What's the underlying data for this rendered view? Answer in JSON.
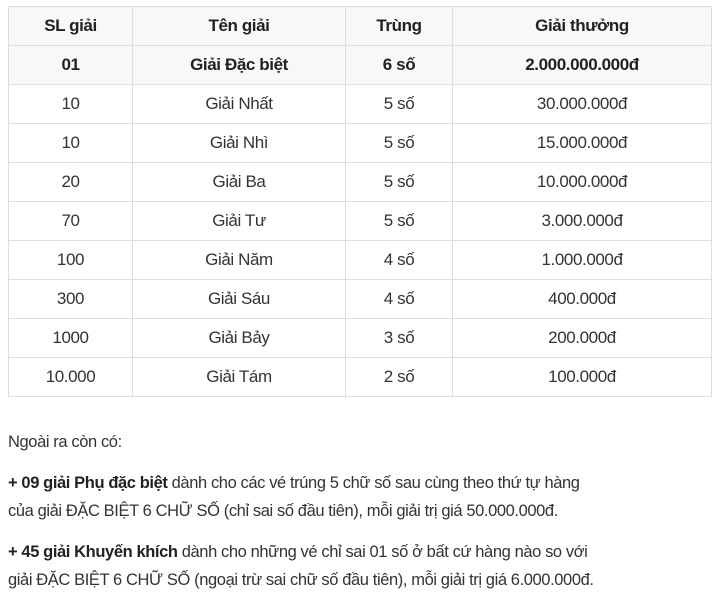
{
  "table": {
    "headers": [
      "SL giải",
      "Tên giải",
      "Trùng",
      "Giải thưởng"
    ],
    "rows": [
      [
        "01",
        "Giải Đặc biệt",
        "6 số",
        "2.000.000.000đ"
      ],
      [
        "10",
        "Giải Nhất",
        "5 số",
        "30.000.000đ"
      ],
      [
        "10",
        "Giải Nhì",
        "5 số",
        "15.000.000đ"
      ],
      [
        "20",
        "Giải Ba",
        "5 số",
        "10.000.000đ"
      ],
      [
        "70",
        "Giải Tư",
        "5 số",
        "3.000.000đ"
      ],
      [
        "100",
        "Giải Năm",
        "4 số",
        "1.000.000đ"
      ],
      [
        "300",
        "Giải Sáu",
        "4 số",
        "400.000đ"
      ],
      [
        "1000",
        "Giải Bảy",
        "3 số",
        "200.000đ"
      ],
      [
        "10.000",
        "Giải Tám",
        "2 số",
        "100.000đ"
      ]
    ]
  },
  "notes": {
    "intro": "Ngoài ra còn có:",
    "items": [
      {
        "bold": "+ 09 giải Phụ đặc biệt",
        "line1": " dành cho các vé trúng 5 chữ số sau cùng theo thứ tự hàng",
        "line2": "của giải ĐẶC BIỆT 6 CHỮ SỐ (chỉ sai số đầu tiên), mỗi giải trị giá 50.000.000đ."
      },
      {
        "bold": "+ 45 giải Khuyến khích",
        "line1": " dành cho những vé chỉ sai 01 số ở bất cứ hàng nào so với",
        "line2": "giải ĐẶC BIỆT 6 CHỮ SỐ (ngoại trừ sai chữ số đầu tiên), mỗi giải trị giá 6.000.000đ."
      }
    ]
  }
}
